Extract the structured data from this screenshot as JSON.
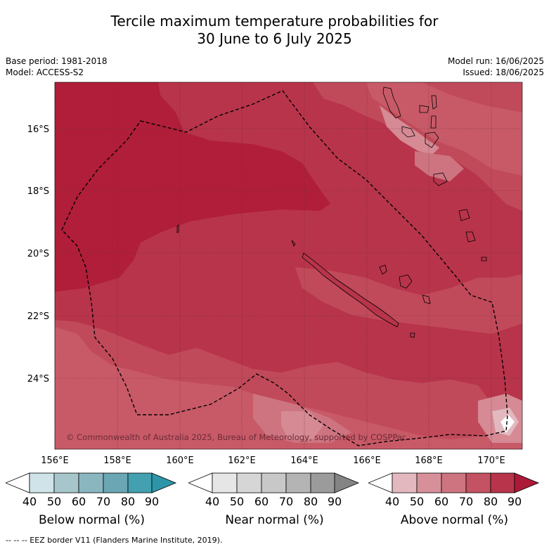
{
  "title": {
    "line1": "Tercile maximum temperature probabilities for",
    "line2": "30 June to 6 July 2025"
  },
  "meta": {
    "base_period": "Base period: 1981-2018",
    "model": "Model: ACCESS-S2",
    "model_run": "Model run: 16/06/2025",
    "issued": "Issued: 18/06/2025"
  },
  "map": {
    "lat_labels": [
      "16°S",
      "18°S",
      "20°S",
      "22°S",
      "24°S"
    ],
    "lon_labels": [
      "156°E",
      "158°E",
      "160°E",
      "162°E",
      "164°E",
      "166°E",
      "168°E",
      "170°E"
    ],
    "copyright": "© Commonwealth of Australia 2025, Bureau of Meteorology, supported by COSPPac",
    "colors": {
      "above_70_80": "#c14a5a",
      "above_80_90": "#b8344b",
      "above_90": "#b01e3a",
      "above_60_70": "#cd7480"
    }
  },
  "colorbars": [
    {
      "label": "Below normal (%)",
      "ticks": [
        "40",
        "50",
        "60",
        "70",
        "80",
        "90"
      ],
      "colors": [
        "#ffffff",
        "#cfe3e8",
        "#a7c6cc",
        "#8ab6c0",
        "#6aa6b3",
        "#43a0b0",
        "#2c96a8"
      ]
    },
    {
      "label": "Near normal (%)",
      "ticks": [
        "40",
        "50",
        "60",
        "70",
        "80",
        "90"
      ],
      "colors": [
        "#ffffff",
        "#e6e6e6",
        "#d6d6d6",
        "#c8c8c8",
        "#b4b4b4",
        "#9b9b9b",
        "#848484"
      ]
    },
    {
      "label": "Above normal (%)",
      "ticks": [
        "40",
        "50",
        "60",
        "70",
        "80",
        "90"
      ],
      "colors": [
        "#ffffff",
        "#e3b8bf",
        "#d79099",
        "#cd7480",
        "#c35262",
        "#b8344b",
        "#ac1a38"
      ]
    }
  ],
  "footer": "--  --  -- EEZ border V11 (Flanders Marine Institute, 2019)."
}
